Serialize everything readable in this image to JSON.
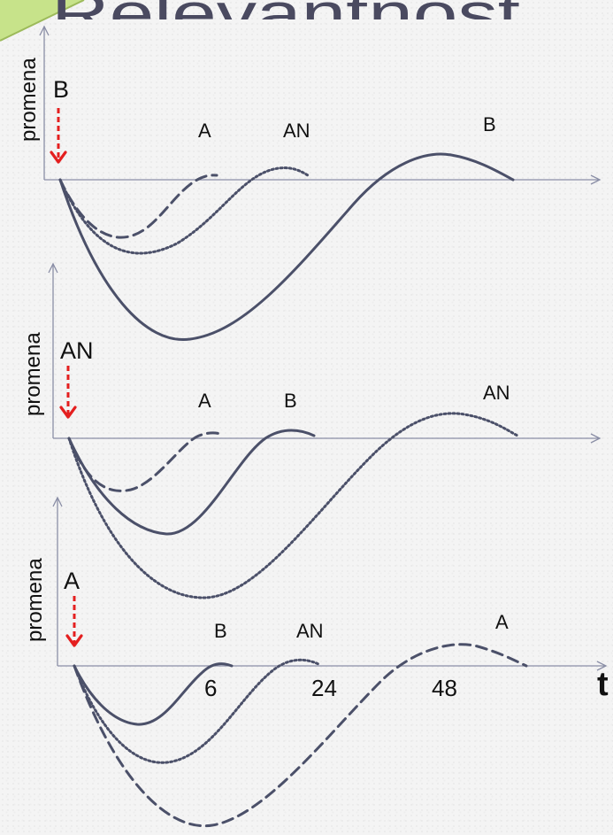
{
  "title_fragment": "Relevantnost",
  "colors": {
    "curve": "#4b5069",
    "axis": "#8a8ea6",
    "trigger_arrow": "#e41f1f",
    "title_corner": "#bfe07a"
  },
  "line_styles": {
    "A": "dashed",
    "AN": "dotted",
    "B": "solid"
  },
  "axis_time_label": "t",
  "time_ticks": [
    "6",
    "24",
    "48"
  ],
  "panels": [
    {
      "y_label": "promena",
      "trigger": "B",
      "curve_labels": {
        "A": "A",
        "AN": "AN",
        "B": "B"
      }
    },
    {
      "y_label": "promena",
      "trigger": "AN",
      "curve_labels": {
        "A": "A",
        "B": "B",
        "AN": "AN"
      }
    },
    {
      "y_label": "promena",
      "trigger": "A",
      "curve_labels": {
        "B": "B",
        "AN": "AN",
        "A": "A"
      }
    }
  ]
}
